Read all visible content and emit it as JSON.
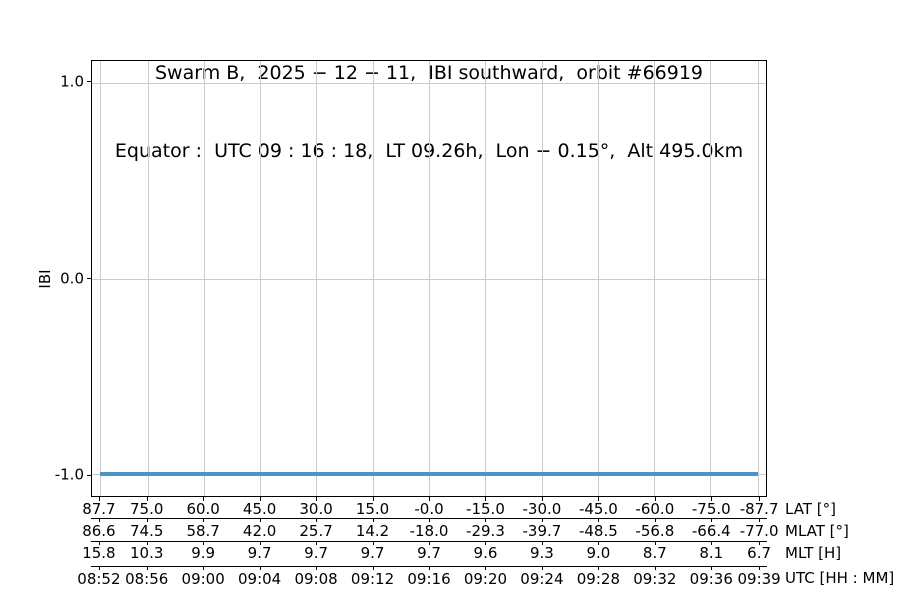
{
  "title": {
    "line1": "Swarm B,  2025 − 12 − 11,  IBI southward,  orbit #66919",
    "line2": "Equator :  UTC 09 : 16 : 18,  LT 09.26h,  Lon − 0.15°,  Alt 495.0km"
  },
  "colors": {
    "line": "#4b94c8",
    "grid": "#cccccc",
    "axis": "#000000"
  },
  "chart_data": {
    "type": "line",
    "title": "Swarm B, 2025-12-11, IBI southward, orbit #66919",
    "subtitle": "Equator: UTC 09:16:18, LT 09.26h, Lon -0.15°, Alt 495.0km",
    "ylabel": "IBI",
    "ylim": [
      -1.11,
      1.11
    ],
    "yticks": [
      {
        "value": 1.0,
        "label": "1.0"
      },
      {
        "value": 0.0,
        "label": "0.0"
      },
      {
        "value": -1.0,
        "label": "-1.0"
      }
    ],
    "xlim_lat": [
      89.8,
      -89.8
    ],
    "grid": true,
    "legend": "none",
    "series": [
      {
        "name": "IBI",
        "color": "#4b94c8",
        "points": [
          {
            "lat": 87.7,
            "y": -1.0
          },
          {
            "lat": -87.7,
            "y": -1.0
          }
        ]
      }
    ],
    "x_row_labels": [
      "LAT [°]",
      "MLAT [°]",
      "MLT [H]",
      "UTC [HH : MM]"
    ],
    "x_columns": [
      {
        "lat": 87.7,
        "values": [
          "87.7",
          "86.6",
          "15.8",
          "08:52"
        ]
      },
      {
        "lat": 75.0,
        "values": [
          "75.0",
          "74.5",
          "10.3",
          "08:56"
        ]
      },
      {
        "lat": 60.0,
        "values": [
          "60.0",
          "58.7",
          "9.9",
          "09:00"
        ]
      },
      {
        "lat": 45.0,
        "values": [
          "45.0",
          "42.0",
          "9.7",
          "09:04"
        ]
      },
      {
        "lat": 30.0,
        "values": [
          "30.0",
          "25.7",
          "9.7",
          "09:08"
        ]
      },
      {
        "lat": 15.0,
        "values": [
          "15.0",
          "14.2",
          "9.7",
          "09:12"
        ]
      },
      {
        "lat": 0.0,
        "values": [
          "-0.0",
          "-18.0",
          "9.7",
          "09:16"
        ]
      },
      {
        "lat": -15.0,
        "values": [
          "-15.0",
          "-29.3",
          "9.6",
          "09:20"
        ]
      },
      {
        "lat": -30.0,
        "values": [
          "-30.0",
          "-39.7",
          "9.3",
          "09:24"
        ]
      },
      {
        "lat": -45.0,
        "values": [
          "-45.0",
          "-48.5",
          "9.0",
          "09:28"
        ]
      },
      {
        "lat": -60.0,
        "values": [
          "-60.0",
          "-56.8",
          "8.7",
          "09:32"
        ]
      },
      {
        "lat": -75.0,
        "values": [
          "-75.0",
          "-66.4",
          "8.1",
          "09:36"
        ]
      },
      {
        "lat": -87.7,
        "values": [
          "-87.7",
          "-77.0",
          "6.7",
          "09:39"
        ]
      }
    ]
  }
}
